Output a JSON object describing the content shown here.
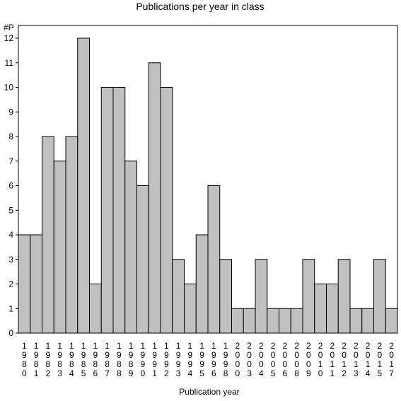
{
  "chart_data": {
    "type": "bar",
    "title": "Publications per year in class",
    "ylabel": "#P",
    "xlabel": "Publication year",
    "categories": [
      "1980",
      "1981",
      "1982",
      "1983",
      "1984",
      "1985",
      "1986",
      "1987",
      "1988",
      "1989",
      "1990",
      "1991",
      "1992",
      "1993",
      "1994",
      "1995",
      "1996",
      "1998",
      "2000",
      "2003",
      "2004",
      "2005",
      "2006",
      "2008",
      "2009",
      "2010",
      "2011",
      "2012",
      "2013",
      "2014",
      "2015",
      "2017"
    ],
    "values": [
      4,
      4,
      8,
      7,
      8,
      12,
      2,
      10,
      10,
      7,
      6,
      11,
      10,
      3,
      2,
      4,
      6,
      3,
      1,
      1,
      3,
      1,
      1,
      1,
      3,
      2,
      2,
      3,
      1,
      1,
      3,
      1
    ],
    "ylim": [
      0,
      12
    ],
    "yticks": [
      0,
      1,
      2,
      3,
      4,
      5,
      6,
      7,
      8,
      9,
      10,
      11,
      12
    ],
    "grid": false,
    "legend": "none",
    "colors": {
      "bar_fill": "#c0c0c0",
      "bar_stroke": "#000000",
      "axis": "#000000",
      "background": "#ffffff"
    }
  }
}
